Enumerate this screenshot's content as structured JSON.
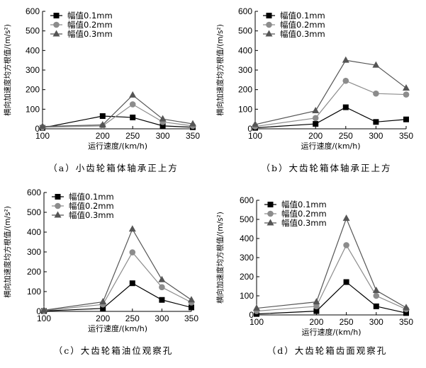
{
  "chart_data": [
    {
      "type": "line",
      "caption": "（a）小齿轮箱体轴承正上方",
      "xlabel": "运行速度/(km/h)",
      "ylabel": "横向加速度均方根值/(m/s²)",
      "x": [
        100,
        200,
        250,
        300,
        350
      ],
      "xticks": [
        "100",
        "200",
        "250",
        "300",
        "350"
      ],
      "ylim": [
        0,
        600
      ],
      "yticks": [
        "0",
        "100",
        "200",
        "300",
        "400",
        "500",
        "600"
      ],
      "legend_position": "top-left",
      "series": [
        {
          "name": "幅值0.1mm",
          "marker": "square",
          "color": "#000000",
          "values": [
            5,
            65,
            58,
            15,
            8
          ]
        },
        {
          "name": "幅值0.2mm",
          "marker": "circle",
          "color": "#8c8c8c",
          "values": [
            8,
            15,
            125,
            35,
            15
          ]
        },
        {
          "name": "幅值0.3mm",
          "marker": "triangle",
          "color": "#555555",
          "values": [
            12,
            20,
            172,
            50,
            25
          ]
        }
      ]
    },
    {
      "type": "line",
      "caption": "（b）大齿轮箱体轴承正上方",
      "xlabel": "运行速度/(km/h)",
      "ylabel": "横向加速度均方根值/(m/s²)",
      "x": [
        100,
        200,
        250,
        300,
        350
      ],
      "xticks": [
        "100",
        "200",
        "250",
        "300",
        "350"
      ],
      "ylim": [
        0,
        600
      ],
      "yticks": [
        "0",
        "100",
        "200",
        "300",
        "400",
        "500",
        "600"
      ],
      "legend_position": "top-left",
      "series": [
        {
          "name": "幅值0.1mm",
          "marker": "square",
          "color": "#000000",
          "values": [
            5,
            25,
            110,
            35,
            48
          ]
        },
        {
          "name": "幅值0.2mm",
          "marker": "circle",
          "color": "#8c8c8c",
          "values": [
            12,
            55,
            245,
            180,
            175
          ]
        },
        {
          "name": "幅值0.3mm",
          "marker": "triangle",
          "color": "#555555",
          "values": [
            22,
            92,
            350,
            325,
            208
          ]
        }
      ]
    },
    {
      "type": "line",
      "caption": "（c）大齿轮箱油位观察孔",
      "xlabel": "运行速度/(km/h)",
      "ylabel": "横向加速度均方根值/(m/s²)",
      "x": [
        100,
        200,
        250,
        300,
        350
      ],
      "xticks": [
        "100",
        "200",
        "250",
        "300",
        "350"
      ],
      "ylim": [
        0,
        600
      ],
      "yticks": [
        "0",
        "100",
        "200",
        "300",
        "400",
        "500",
        "600"
      ],
      "legend_position": "top-left",
      "series": [
        {
          "name": "幅值0.1mm",
          "marker": "square",
          "color": "#000000",
          "values": [
            2,
            15,
            142,
            58,
            20
          ]
        },
        {
          "name": "幅值0.2mm",
          "marker": "circle",
          "color": "#8c8c8c",
          "values": [
            4,
            35,
            298,
            122,
            45
          ]
        },
        {
          "name": "幅值0.3mm",
          "marker": "triangle",
          "color": "#555555",
          "values": [
            6,
            48,
            415,
            160,
            58
          ]
        }
      ]
    },
    {
      "type": "line",
      "caption": "（d）大齿轮箱齿面观察孔",
      "xlabel": "运行速度/(km/h)",
      "ylabel": "横向加速度均方根值/(m/s²)",
      "x": [
        100,
        200,
        250,
        300,
        350
      ],
      "xticks": [
        "100",
        "200",
        "250",
        "300",
        "350"
      ],
      "ylim": [
        0,
        600
      ],
      "yticks": [
        "0",
        "100",
        "200",
        "300",
        "400",
        "500",
        "600"
      ],
      "legend_position": "top-left",
      "series": [
        {
          "name": "幅值0.1mm",
          "marker": "square",
          "color": "#000000",
          "values": [
            5,
            20,
            172,
            45,
            10
          ]
        },
        {
          "name": "幅值0.2mm",
          "marker": "circle",
          "color": "#8c8c8c",
          "values": [
            20,
            45,
            365,
            100,
            30
          ]
        },
        {
          "name": "幅值0.3mm",
          "marker": "triangle",
          "color": "#555555",
          "values": [
            35,
            68,
            505,
            128,
            38
          ]
        }
      ]
    }
  ]
}
